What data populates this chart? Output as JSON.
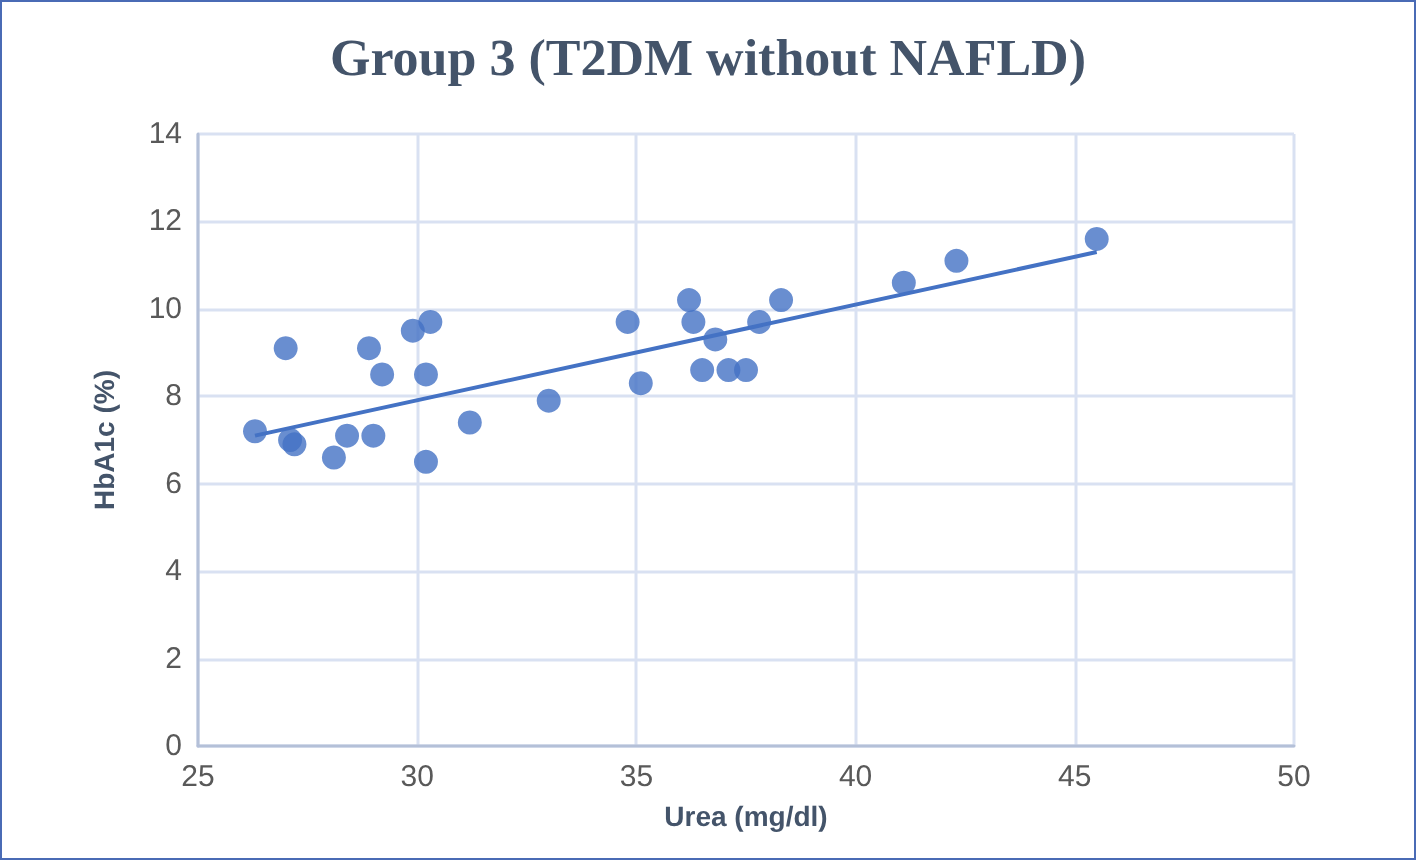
{
  "chart_data": {
    "type": "scatter",
    "title": "Group 3 (T2DM without NAFLD)",
    "xlabel": "Urea (mg/dl)",
    "ylabel": "HbA1c (%)",
    "xlim": [
      25,
      50
    ],
    "xticks": [
      25,
      30,
      35,
      40,
      45,
      50
    ],
    "ylim": [
      0,
      14
    ],
    "yticks": [
      0,
      2,
      4,
      6,
      8,
      10,
      12,
      14
    ],
    "grid": true,
    "marker": "circle",
    "series": [
      {
        "color": "#4472c4",
        "x": [
          26.3,
          27.0,
          27.1,
          27.2,
          28.1,
          28.4,
          28.9,
          29.0,
          29.2,
          29.9,
          30.3,
          30.2,
          30.2,
          31.2,
          33.0,
          34.8,
          35.1,
          36.2,
          36.3,
          36.5,
          36.8,
          37.1,
          37.5,
          37.8,
          38.3,
          41.1,
          42.3,
          45.5
        ],
        "values": [
          7.2,
          9.1,
          7.0,
          6.9,
          6.6,
          7.1,
          9.1,
          7.1,
          8.5,
          9.5,
          9.7,
          8.5,
          6.5,
          7.4,
          7.9,
          9.7,
          8.3,
          10.2,
          9.7,
          8.6,
          9.3,
          8.6,
          8.6,
          9.7,
          10.2,
          10.6,
          11.1,
          11.6
        ]
      },
      {
        "type": "line",
        "color": "#4472c4",
        "marker": "none",
        "x": [
          26.3,
          45.5
        ],
        "values": [
          7.1,
          11.3
        ]
      }
    ]
  }
}
